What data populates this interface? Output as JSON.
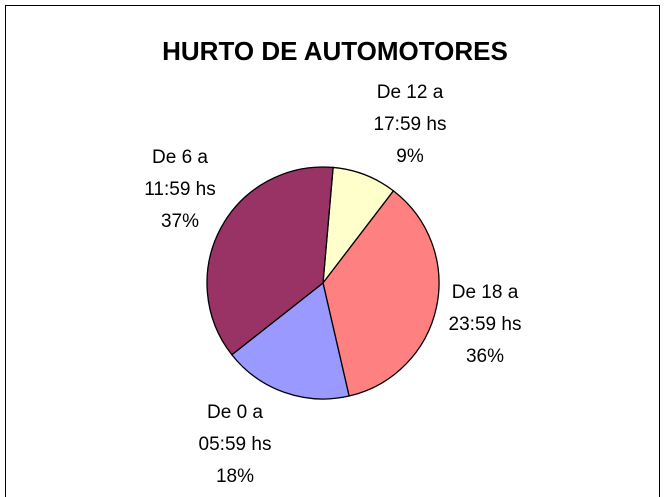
{
  "chart_data": {
    "type": "pie",
    "title": "HURTO DE AUTOMOTORES",
    "categories": [
      "De 12 a\n17:59 hs",
      "De 18 a\n23:59 hs",
      "De 0 a\n05:59 hs",
      "De 6 a\n11:59 hs"
    ],
    "values": [
      9,
      36,
      18,
      37
    ],
    "value_labels": [
      "9%",
      "36%",
      "18%",
      "37%"
    ],
    "colors": [
      "#ffffcc",
      "#ff8080",
      "#9999ff",
      "#993366"
    ]
  }
}
